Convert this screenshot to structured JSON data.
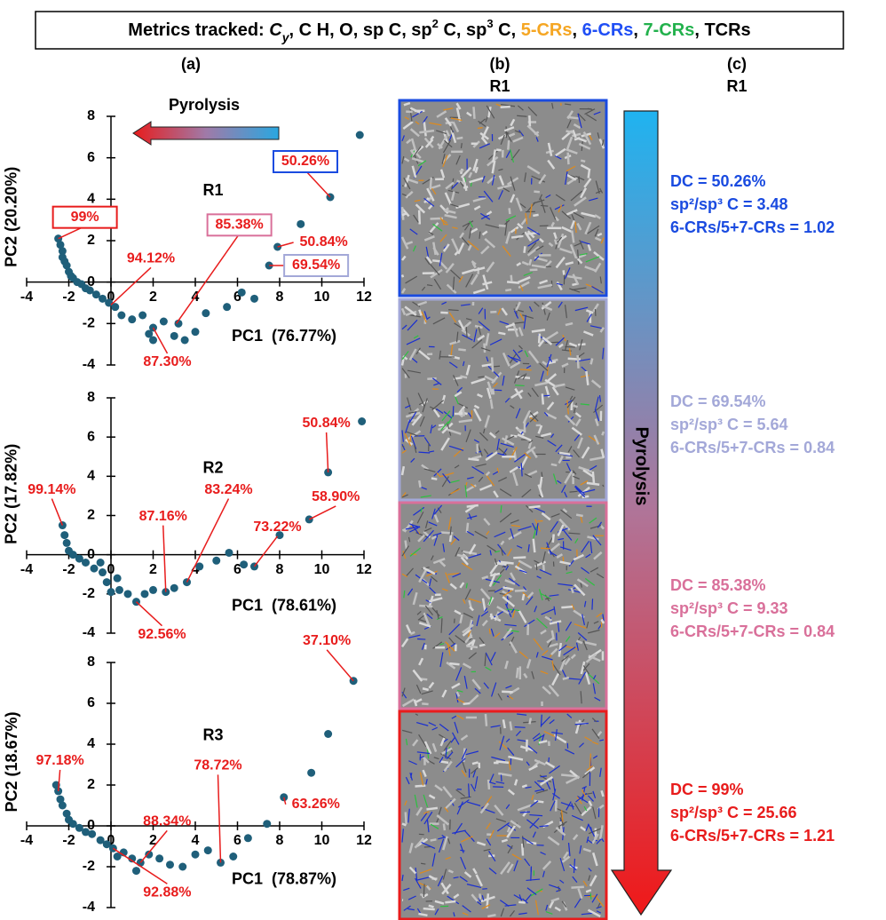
{
  "header": {
    "parts": [
      {
        "text": "Metrics tracked: "
      },
      {
        "text": "C",
        "italic": true
      },
      {
        "text": "y",
        "italic": true,
        "sub": true
      },
      {
        "text": ", C H, O, sp C, sp"
      },
      {
        "text": "2",
        "sup": true
      },
      {
        "text": " C, sp"
      },
      {
        "text": "3",
        "sup": true
      },
      {
        "text": " C, "
      },
      {
        "text": "5-CRs",
        "color": "#f5a623"
      },
      {
        "text": ", "
      },
      {
        "text": "6-CRs",
        "color": "#1f4ef5"
      },
      {
        "text": ", "
      },
      {
        "text": "7-CRs",
        "color": "#22b14c"
      },
      {
        "text": ", TCRs"
      }
    ]
  },
  "panel_a": {
    "label": "(a)"
  },
  "panel_b": {
    "label": "(b)",
    "subtitle": "R1"
  },
  "panel_c": {
    "label": "(c)",
    "subtitle": "R1",
    "arrow_label": "Pyrolysis",
    "blocks": [
      {
        "color": "#1a4be0",
        "lines": [
          "DC = 50.26%",
          "sp²/sp³ C = 3.48",
          "6-CRs/5+7-CRs = 1.02"
        ]
      },
      {
        "color": "#a3a8d8",
        "lines": [
          "DC = 69.54%",
          "sp²/sp³ C = 5.64",
          "6-CRs/5+7-CRs = 0.84"
        ]
      },
      {
        "color": "#d9709a",
        "lines": [
          "DC = 85.38%",
          "sp²/sp³ C = 9.33",
          "6-CRs/5+7-CRs = 0.84"
        ]
      },
      {
        "color": "#e81c1c",
        "lines": [
          "DC = 99%",
          "sp²/sp³ C = 25.66",
          "6-CRs/5+7-CRs = 1.21"
        ]
      }
    ]
  },
  "chart_data": [
    {
      "type": "scatter",
      "title": "R1",
      "x_label": "PC1  (76.77%)",
      "y_label": "PC2 (20.20%)",
      "arrow_label": "Pyrolysis",
      "color": "#1f5f7a",
      "xlim": [
        -4,
        12
      ],
      "ylim": [
        -4,
        8
      ],
      "xticks": [
        -4,
        -2,
        0,
        2,
        4,
        6,
        8,
        10,
        12
      ],
      "yticks": [
        -4,
        -2,
        0,
        2,
        4,
        6,
        8
      ],
      "x": [
        -2.5,
        -2.4,
        -2.3,
        -2.3,
        -2.2,
        -2.1,
        -2.0,
        -1.9,
        -1.8,
        -1.6,
        -1.4,
        -1.2,
        -1.0,
        -0.7,
        -0.4,
        -0.1,
        0.2,
        0.5,
        1.0,
        1.5,
        2.0,
        2.5,
        3.0,
        2.0,
        3.5,
        4.0,
        4.5,
        5.5,
        6.2,
        6.8,
        7.5,
        7.9,
        9.0,
        10.4,
        11.8,
        3.2,
        1.8
      ],
      "values": [
        2.1,
        1.8,
        1.5,
        1.2,
        1.0,
        0.8,
        0.5,
        0.3,
        0.2,
        0.0,
        -0.1,
        -0.3,
        -0.4,
        -0.6,
        -0.8,
        -1.0,
        -1.2,
        -1.6,
        -1.8,
        -1.6,
        -2.2,
        -1.9,
        -2.6,
        -2.8,
        -2.8,
        -2.4,
        -1.5,
        -1.2,
        -0.5,
        -0.8,
        0.8,
        1.7,
        2.8,
        4.1,
        7.1,
        -2.0,
        -2.5
      ],
      "annotations": [
        {
          "text": "99%",
          "x": -2.5,
          "y": 2.1,
          "box": "#e81c1c"
        },
        {
          "text": "85.38%",
          "x": 3.1,
          "y": -2.0,
          "box": "#d9709a"
        },
        {
          "text": "50.26%",
          "x": 10.4,
          "y": 4.1,
          "box": "#1a4be0"
        },
        {
          "text": "69.54%",
          "x": 7.5,
          "y": 0.8,
          "box": "#a3a8d8"
        },
        {
          "text": "94.12%",
          "x": 0,
          "y": -1.1
        },
        {
          "text": "87.30%",
          "x": 2.0,
          "y": -2.2
        },
        {
          "text": "50.84%",
          "x": 7.9,
          "y": 1.7
        }
      ]
    },
    {
      "type": "scatter",
      "title": "R2",
      "x_label": "PC1  (78.61%)",
      "y_label": "PC2 (17.82%)",
      "color": "#1f5f7a",
      "xlim": [
        -4,
        12
      ],
      "ylim": [
        -4,
        8
      ],
      "xticks": [
        -4,
        -2,
        0,
        2,
        4,
        6,
        8,
        10,
        12
      ],
      "yticks": [
        -4,
        -2,
        0,
        2,
        4,
        6,
        8
      ],
      "x": [
        -2.3,
        -2.2,
        -2.1,
        -2.0,
        -1.8,
        -1.5,
        -1.2,
        -0.8,
        -0.4,
        -0.2,
        0.0,
        0.4,
        0.8,
        1.2,
        1.6,
        2.0,
        2.6,
        3.0,
        3.6,
        4.2,
        5.0,
        5.6,
        6.3,
        6.8,
        8.0,
        9.4,
        10.3,
        11.9,
        -0.5,
        0.3
      ],
      "values": [
        1.5,
        1.0,
        0.6,
        0.2,
        0.0,
        -0.2,
        -0.4,
        -0.7,
        -0.9,
        -1.4,
        -1.9,
        -1.8,
        -2.0,
        -2.4,
        -2.0,
        -1.8,
        -1.9,
        -1.7,
        -1.4,
        -0.6,
        -0.3,
        0.1,
        -0.5,
        -0.6,
        1.0,
        1.8,
        4.2,
        6.8,
        -0.4,
        -1.2
      ],
      "annotations": [
        {
          "text": "50.84%",
          "x": 10.3,
          "y": 4.2
        },
        {
          "text": "58.90%",
          "x": 9.4,
          "y": 1.8
        },
        {
          "text": "99.14%",
          "x": -2.3,
          "y": 1.5
        },
        {
          "text": "87.16%",
          "x": 2.6,
          "y": -1.9
        },
        {
          "text": "83.24%",
          "x": 3.6,
          "y": -1.4
        },
        {
          "text": "73.22%",
          "x": 6.8,
          "y": -0.6
        },
        {
          "text": "92.56%",
          "x": 1.2,
          "y": -2.4
        }
      ]
    },
    {
      "type": "scatter",
      "title": "R3",
      "x_label": "PC1  (78.87%)",
      "y_label": "PC2 (18.67%)",
      "color": "#1f5f7a",
      "xlim": [
        -4,
        12
      ],
      "ylim": [
        -4,
        8
      ],
      "xticks": [
        -4,
        -2,
        0,
        2,
        4,
        6,
        8,
        10,
        12
      ],
      "yticks": [
        -4,
        -2,
        0,
        2,
        4,
        6,
        8
      ],
      "x": [
        -2.6,
        -2.5,
        -2.4,
        -2.3,
        -2.1,
        -2.0,
        -1.8,
        -1.5,
        -1.2,
        -0.9,
        -0.5,
        -0.2,
        0.1,
        0.3,
        0.6,
        1.0,
        1.4,
        1.8,
        2.3,
        2.8,
        3.4,
        4.0,
        4.6,
        5.2,
        5.8,
        6.5,
        7.4,
        8.2,
        9.5,
        10.3,
        11.5,
        1.2
      ],
      "values": [
        2.0,
        1.7,
        1.3,
        1.0,
        0.6,
        0.3,
        0.1,
        -0.1,
        -0.3,
        -0.4,
        -0.7,
        -0.9,
        -1.1,
        -1.5,
        -1.3,
        -1.6,
        -1.8,
        -1.4,
        -1.6,
        -1.9,
        -2.0,
        -1.4,
        -1.2,
        -1.8,
        -1.5,
        -0.6,
        0.1,
        1.4,
        2.6,
        4.5,
        7.1,
        -2.2
      ],
      "annotations": [
        {
          "text": "37.10%",
          "x": 11.5,
          "y": 7.1
        },
        {
          "text": "97.18%",
          "x": -2.5,
          "y": 1.7
        },
        {
          "text": "88.34%",
          "x": 1.4,
          "y": -1.8
        },
        {
          "text": "78.72%",
          "x": 5.2,
          "y": -1.8
        },
        {
          "text": "63.26%",
          "x": 8.2,
          "y": 1.4
        },
        {
          "text": "92.88%",
          "x": 0.1,
          "y": -1.1
        }
      ]
    }
  ]
}
